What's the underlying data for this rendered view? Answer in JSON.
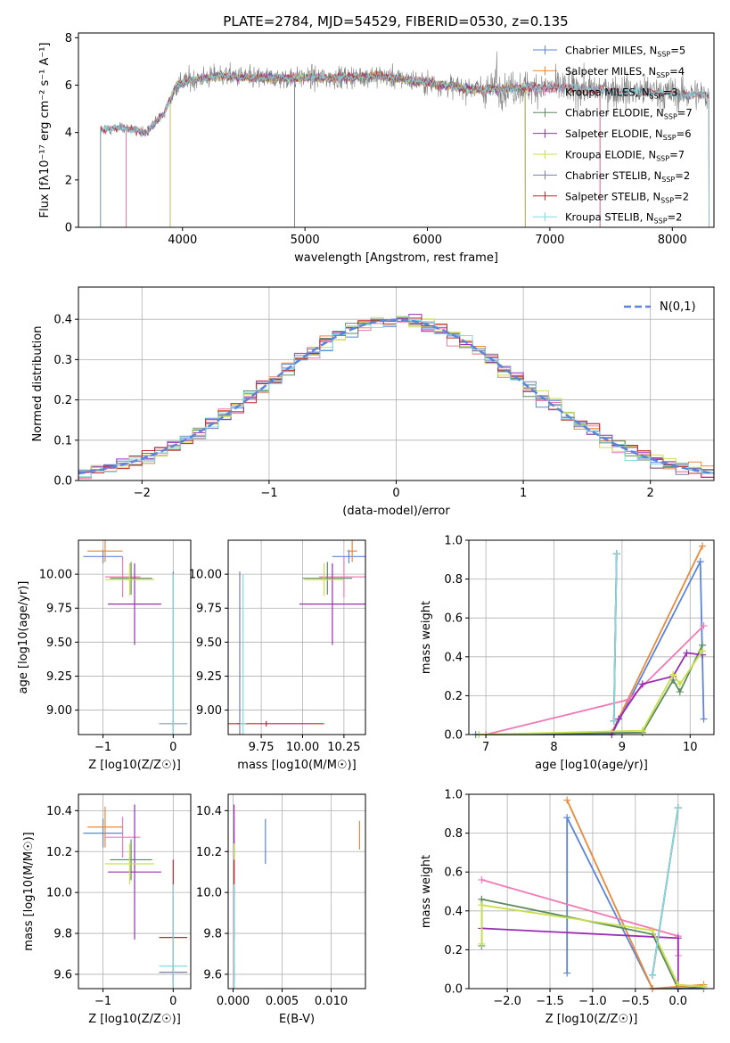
{
  "title": "PLATE=2784, MJD=54529, FIBERID=0530, z=0.135",
  "colors": {
    "chabrier_miles": "#5b84db",
    "salpeter_miles": "#e8893a",
    "kroupa_miles": "#f17ab5",
    "chabrier_elodie": "#5e8a61",
    "salpeter_elodie": "#9a2db3",
    "kroupa_elodie": "#c7e04d",
    "chabrier_stelib": "#7a7fa6",
    "salpeter_stelib": "#c0282d",
    "kroupa_stelib": "#7fdbe0",
    "data": "#808080",
    "normal": "#5b84db"
  },
  "chart_data": [
    {
      "id": "spectrum",
      "type": "line",
      "title": "PLATE=2784, MJD=54529, FIBERID=0530, z=0.135",
      "xlabel": "wavelength [Angstrom, rest frame]",
      "ylabel": "Flux [fλ10⁻¹⁷ erg cm⁻² s⁻¹ A⁻¹]",
      "xlim": [
        3150,
        8340
      ],
      "ylim": [
        0,
        8.2
      ],
      "xticks": [
        4000,
        5000,
        6000,
        7000,
        8000
      ],
      "yticks": [
        0,
        2,
        4,
        6,
        8
      ],
      "grid": false,
      "legend_position": "right",
      "series": [
        {
          "name": "Chabrier MILES, N_SSP=5",
          "color_key": "chabrier_miles"
        },
        {
          "name": "Salpeter MILES, N_SSP=4",
          "color_key": "salpeter_miles"
        },
        {
          "name": "Kroupa MILES, N_SSP=3",
          "color_key": "kroupa_miles"
        },
        {
          "name": "Chabrier ELODIE, N_SSP=7",
          "color_key": "chabrier_elodie"
        },
        {
          "name": "Salpeter ELODIE, N_SSP=6",
          "color_key": "salpeter_elodie"
        },
        {
          "name": "Kroupa ELODIE, N_SSP=7",
          "color_key": "kroupa_elodie"
        },
        {
          "name": "Chabrier STELIB, N_SSP=2",
          "color_key": "chabrier_stelib"
        },
        {
          "name": "Salpeter STELIB, N_SSP=2",
          "color_key": "salpeter_stelib"
        },
        {
          "name": "Kroupa STELIB, N_SSP=2",
          "color_key": "kroupa_stelib"
        }
      ],
      "continuum": {
        "x": [
          3330,
          3500,
          3700,
          3850,
          3950,
          4050,
          4300,
          4600,
          4900,
          5200,
          5600,
          6000,
          6400,
          6800,
          7100,
          7400
        ],
        "y": [
          4.1,
          4.2,
          4.0,
          4.8,
          6.0,
          6.2,
          6.4,
          6.3,
          6.3,
          6.3,
          6.4,
          6.1,
          5.8,
          5.9,
          5.9,
          5.8
        ]
      },
      "data_range": [
        3330,
        8300
      ]
    },
    {
      "id": "residuals",
      "type": "bar",
      "xlabel": "(data-model)/error",
      "ylabel": "Normed distribution",
      "xlim": [
        -2.5,
        2.5
      ],
      "ylim": [
        0,
        0.48
      ],
      "xticks": [
        -2,
        -1,
        0,
        1,
        2
      ],
      "yticks": [
        0.0,
        0.1,
        0.2,
        0.3,
        0.4
      ],
      "grid": true,
      "legend": "N(0,1)",
      "legend_position": "top-right",
      "bin_width": 0.1
    },
    {
      "id": "age_vs_Z",
      "type": "scatter",
      "xlabel": "Z [log10(Z/Z☉)]",
      "ylabel": "age [log10(age/yr)]",
      "xlim": [
        -1.35,
        0.25
      ],
      "ylim": [
        8.82,
        10.25
      ],
      "xticks": [
        -1,
        0
      ],
      "yticks": [
        9.0,
        9.25,
        9.5,
        9.75,
        10.0
      ],
      "grid": true,
      "points": [
        {
          "key": "chabrier_miles",
          "x": -1.0,
          "y": 10.13,
          "xerr": 0.28,
          "yerr": 0.05
        },
        {
          "key": "salpeter_miles",
          "x": -0.97,
          "y": 10.17,
          "xerr": 0.25,
          "yerr": 0.08
        },
        {
          "key": "kroupa_miles",
          "x": -0.72,
          "y": 9.98,
          "xerr": 0.25,
          "yerr": 0.15
        },
        {
          "key": "chabrier_elodie",
          "x": -0.6,
          "y": 9.97,
          "xerr": 0.3,
          "yerr": 0.12
        },
        {
          "key": "salpeter_elodie",
          "x": -0.55,
          "y": 9.78,
          "xerr": 0.38,
          "yerr": 0.3
        },
        {
          "key": "kroupa_elodie",
          "x": -0.62,
          "y": 9.96,
          "xerr": 0.35,
          "yerr": 0.12
        },
        {
          "key": "chabrier_stelib",
          "x": 0.0,
          "y": 8.9,
          "xerr": 0.2,
          "yerr": 1.12
        },
        {
          "key": "salpeter_stelib",
          "x": 0.0,
          "y": 8.9,
          "xerr": 0.2,
          "yerr": 0.02
        },
        {
          "key": "kroupa_stelib",
          "x": 0.0,
          "y": 8.9,
          "xerr": 0.2,
          "yerr": 1.1
        }
      ]
    },
    {
      "id": "age_vs_mass",
      "type": "scatter",
      "xlabel": "mass [log10(M/M☉)]",
      "ylabel": "",
      "xlim": [
        9.55,
        10.38
      ],
      "ylim": [
        8.82,
        10.25
      ],
      "xticks": [
        9.75,
        10.0,
        10.25
      ],
      "xticklabels": [
        "9.75",
        "10.00",
        "10.25"
      ],
      "yticks": [
        9.0,
        9.25,
        9.5,
        9.75,
        10.0
      ],
      "grid": true,
      "points": [
        {
          "key": "chabrier_miles",
          "x": 10.28,
          "y": 10.13,
          "xerr": 0.1,
          "yerr": 0.05
        },
        {
          "key": "salpeter_miles",
          "x": 10.3,
          "y": 10.17,
          "xerr": 0.03,
          "yerr": 0.08
        },
        {
          "key": "kroupa_miles",
          "x": 10.25,
          "y": 9.98,
          "xerr": 0.15,
          "yerr": 0.15
        },
        {
          "key": "chabrier_elodie",
          "x": 10.15,
          "y": 9.97,
          "xerr": 0.15,
          "yerr": 0.12
        },
        {
          "key": "salpeter_elodie",
          "x": 10.18,
          "y": 9.78,
          "xerr": 0.2,
          "yerr": 0.3
        },
        {
          "key": "kroupa_elodie",
          "x": 10.13,
          "y": 9.96,
          "xerr": 0.12,
          "yerr": 0.12
        },
        {
          "key": "chabrier_stelib",
          "x": 9.62,
          "y": 8.9,
          "xerr": 0.02,
          "yerr": 1.12
        },
        {
          "key": "salpeter_stelib",
          "x": 9.78,
          "y": 8.9,
          "xerr": 0.35,
          "yerr": 0.02
        },
        {
          "key": "kroupa_stelib",
          "x": 9.64,
          "y": 8.9,
          "xerr": 0.02,
          "yerr": 1.1
        }
      ]
    },
    {
      "id": "weight_vs_age",
      "type": "line",
      "xlabel": "age [log10(age/yr)]",
      "ylabel": "mass weight",
      "xlim": [
        6.75,
        10.35
      ],
      "ylim": [
        0,
        1.0
      ],
      "xticks": [
        7,
        8,
        9,
        10
      ],
      "yticks": [
        0.0,
        0.2,
        0.4,
        0.6,
        0.8,
        1.0
      ],
      "grid": true,
      "series": [
        {
          "key": "chabrier_miles",
          "x": [
            6.85,
            8.85,
            10.15,
            10.2
          ],
          "y": [
            0.0,
            0.0,
            0.89,
            0.08
          ]
        },
        {
          "key": "salpeter_miles",
          "x": [
            7.0,
            8.85,
            10.18
          ],
          "y": [
            0.0,
            0.01,
            0.97
          ]
        },
        {
          "key": "kroupa_miles",
          "x": [
            7.0,
            9.1,
            10.2
          ],
          "y": [
            0.0,
            0.18,
            0.56
          ]
        },
        {
          "key": "chabrier_elodie",
          "x": [
            6.9,
            9.3,
            9.75,
            9.85,
            10.18
          ],
          "y": [
            0.0,
            0.01,
            0.28,
            0.22,
            0.46
          ]
        },
        {
          "key": "salpeter_elodie",
          "x": [
            8.85,
            8.95,
            9.3,
            9.75,
            9.95,
            10.18
          ],
          "y": [
            0.0,
            0.08,
            0.26,
            0.3,
            0.42,
            0.41
          ]
        },
        {
          "key": "kroupa_elodie",
          "x": [
            6.9,
            9.3,
            9.75,
            9.85,
            10.18
          ],
          "y": [
            0.0,
            0.02,
            0.31,
            0.26,
            0.43
          ]
        },
        {
          "key": "chabrier_stelib",
          "x": [
            8.88,
            8.92
          ],
          "y": [
            0.07,
            0.93
          ]
        },
        {
          "key": "salpeter_stelib",
          "x": [
            8.88,
            8.92
          ],
          "y": [
            0.07,
            0.93
          ]
        },
        {
          "key": "kroupa_stelib",
          "x": [
            8.88,
            8.92
          ],
          "y": [
            0.07,
            0.93
          ]
        }
      ]
    },
    {
      "id": "mass_vs_Z",
      "type": "scatter",
      "xlabel": "Z [log10(Z/Z☉)]",
      "ylabel": "mass [log10(M/M☉)]",
      "xlim": [
        -1.35,
        0.25
      ],
      "ylim": [
        9.53,
        10.48
      ],
      "xticks": [
        -1,
        0
      ],
      "yticks": [
        9.6,
        9.8,
        10.0,
        10.2,
        10.4
      ],
      "grid": true,
      "points": [
        {
          "key": "chabrier_miles",
          "x": -1.0,
          "y": 10.29,
          "xerr": 0.28,
          "yerr": 0.07
        },
        {
          "key": "salpeter_miles",
          "x": -0.97,
          "y": 10.32,
          "xerr": 0.25,
          "yerr": 0.1
        },
        {
          "key": "kroupa_miles",
          "x": -0.72,
          "y": 10.27,
          "xerr": 0.25,
          "yerr": 0.1
        },
        {
          "key": "chabrier_elodie",
          "x": -0.6,
          "y": 10.16,
          "xerr": 0.3,
          "yerr": 0.1
        },
        {
          "key": "salpeter_elodie",
          "x": -0.55,
          "y": 10.1,
          "xerr": 0.38,
          "yerr": 0.33
        },
        {
          "key": "kroupa_elodie",
          "x": -0.62,
          "y": 10.14,
          "xerr": 0.35,
          "yerr": 0.1
        },
        {
          "key": "chabrier_stelib",
          "x": 0.0,
          "y": 9.61,
          "xerr": 0.2,
          "yerr": 0.04
        },
        {
          "key": "salpeter_stelib",
          "x": 0.0,
          "y": 9.78,
          "xerr": 0.2,
          "yerr": 0.38
        },
        {
          "key": "kroupa_stelib",
          "x": 0.0,
          "y": 9.64,
          "xerr": 0.2,
          "yerr": 0.4
        }
      ]
    },
    {
      "id": "mass_vs_ebv",
      "type": "scatter",
      "xlabel": "E(B-V)",
      "ylabel": "",
      "xlim": [
        -0.0005,
        0.0135
      ],
      "ylim": [
        9.53,
        10.48
      ],
      "xticks": [
        0.0,
        0.005,
        0.01
      ],
      "xticklabels": [
        "0.000",
        "0.005",
        "0.010"
      ],
      "yticks": [
        9.6,
        9.8,
        10.0,
        10.2,
        10.4
      ],
      "grid": true,
      "points": [
        {
          "key": "chabrier_miles",
          "x": 0.0033,
          "y": 10.25,
          "xerr": 0,
          "yerr": 0.11
        },
        {
          "key": "salpeter_miles",
          "x": 0.0129,
          "y": 10.28,
          "xerr": 0,
          "yerr": 0.07
        },
        {
          "key": "kroupa_miles",
          "x": 0.0001,
          "y": 10.27,
          "xerr": 0,
          "yerr": 0.1
        },
        {
          "key": "chabrier_elodie",
          "x": 0.0001,
          "y": 10.16,
          "xerr": 0,
          "yerr": 0.1
        },
        {
          "key": "salpeter_elodie",
          "x": 0.0001,
          "y": 10.1,
          "xerr": 0,
          "yerr": 0.33
        },
        {
          "key": "kroupa_elodie",
          "x": 0.0001,
          "y": 10.14,
          "xerr": 0,
          "yerr": 0.1
        },
        {
          "key": "chabrier_stelib",
          "x": 0.0001,
          "y": 9.61,
          "xerr": 0,
          "yerr": 0.04
        },
        {
          "key": "salpeter_stelib",
          "x": 0.0001,
          "y": 9.78,
          "xerr": 0,
          "yerr": 0.38
        },
        {
          "key": "kroupa_stelib",
          "x": 0.0001,
          "y": 9.64,
          "xerr": 0,
          "yerr": 0.4
        }
      ]
    },
    {
      "id": "weight_vs_Z",
      "type": "line",
      "xlabel": "Z [log10(Z/Z☉)]",
      "ylabel": "mass weight",
      "xlim": [
        -2.45,
        0.42
      ],
      "ylim": [
        0,
        1.0
      ],
      "xticks": [
        -2.0,
        -1.5,
        -1.0,
        -0.5,
        0.0
      ],
      "yticks": [
        0.0,
        0.2,
        0.4,
        0.6,
        0.8,
        1.0
      ],
      "grid": true,
      "series": [
        {
          "key": "chabrier_miles",
          "x": [
            -1.3,
            -1.3,
            -0.3,
            0.3
          ],
          "y": [
            0.08,
            0.88,
            0.0,
            0.0
          ]
        },
        {
          "key": "salpeter_miles",
          "x": [
            -1.3,
            -0.3,
            0.3
          ],
          "y": [
            0.97,
            0.0,
            0.02
          ]
        },
        {
          "key": "kroupa_miles",
          "x": [
            -2.3,
            0.0,
            0.0
          ],
          "y": [
            0.56,
            0.27,
            0.17
          ]
        },
        {
          "key": "chabrier_elodie",
          "x": [
            -2.3,
            -2.3,
            -0.3,
            0.0,
            0.3
          ],
          "y": [
            0.22,
            0.46,
            0.28,
            0.0,
            0.01
          ]
        },
        {
          "key": "salpeter_elodie",
          "x": [
            -2.3,
            0.0,
            0.0
          ],
          "y": [
            0.31,
            0.26,
            0.0
          ]
        },
        {
          "key": "kroupa_elodie",
          "x": [
            -2.3,
            -2.3,
            -0.3,
            0.0,
            0.3
          ],
          "y": [
            0.23,
            0.43,
            0.3,
            0.02,
            0.01
          ]
        },
        {
          "key": "chabrier_stelib",
          "x": [
            -0.3,
            0.0
          ],
          "y": [
            0.07,
            0.93
          ]
        },
        {
          "key": "salpeter_stelib",
          "x": [
            -0.3,
            0.0
          ],
          "y": [
            0.07,
            0.93
          ]
        },
        {
          "key": "kroupa_stelib",
          "x": [
            -0.3,
            0.0
          ],
          "y": [
            0.07,
            0.93
          ]
        }
      ]
    }
  ]
}
